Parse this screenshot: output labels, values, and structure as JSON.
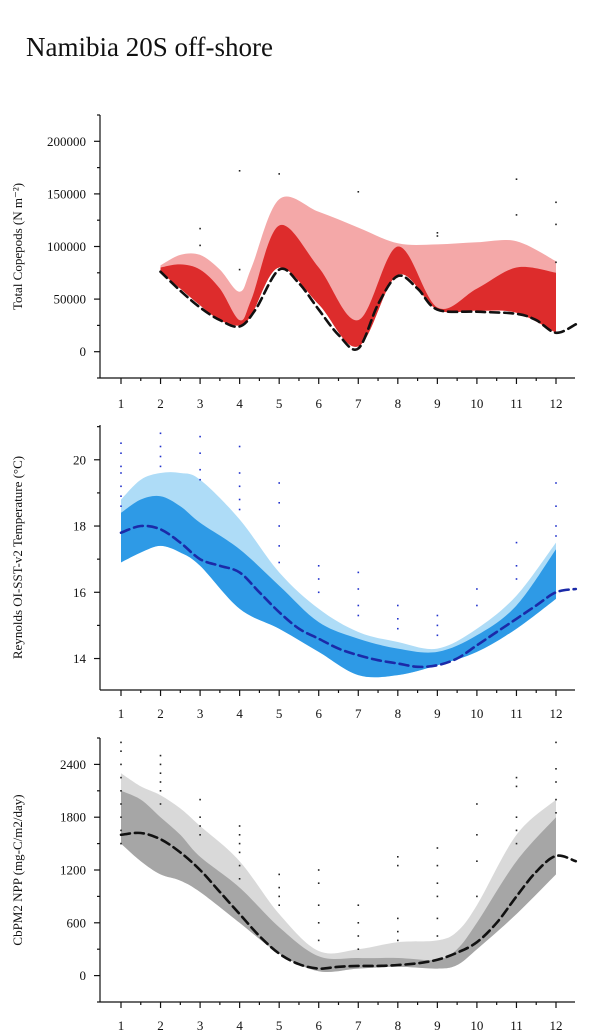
{
  "page": {
    "title": "Namibia 20S off-shore"
  },
  "chart_data": [
    {
      "type": "area",
      "ylabel": "Total Copepods (N m⁻²)",
      "ylim": [
        -25000,
        225000
      ],
      "yticks": [
        0,
        50000,
        100000,
        150000,
        200000
      ],
      "xticks": [
        1,
        2,
        3,
        4,
        5,
        6,
        7,
        8,
        9,
        10,
        11,
        12
      ],
      "xlim": [
        0.5,
        12.5
      ],
      "colors": {
        "outer": "#f4a8a8",
        "inner": "#dd2c2c",
        "median": "#111111",
        "points": "#222222"
      },
      "outer_band": {
        "x": [
          2,
          2.5,
          3,
          3.5,
          4,
          4.3,
          5,
          6,
          7,
          8,
          9,
          10,
          11,
          12
        ],
        "upper": [
          82000,
          92000,
          92000,
          78000,
          57000,
          80000,
          145000,
          133000,
          118000,
          103000,
          102000,
          104000,
          105000,
          86000
        ],
        "lower": [
          76000,
          60000,
          44000,
          30000,
          25000,
          35000,
          80000,
          45000,
          5000,
          73000,
          40000,
          39000,
          37000,
          18000
        ]
      },
      "inner_band": {
        "x": [
          2,
          2.5,
          3,
          3.5,
          4,
          4.3,
          5,
          6,
          7,
          8,
          9,
          10,
          11,
          12
        ],
        "upper": [
          80000,
          83000,
          78000,
          60000,
          30000,
          50000,
          120000,
          80000,
          30000,
          100000,
          42000,
          60000,
          80000,
          75000
        ],
        "lower": [
          76000,
          60000,
          44000,
          30000,
          25000,
          35000,
          80000,
          45000,
          5000,
          73000,
          40000,
          39000,
          37000,
          18000
        ]
      },
      "median": {
        "x": [
          2,
          2.5,
          3,
          3.5,
          4,
          4.4,
          5,
          5.5,
          6,
          6.5,
          7,
          7.5,
          8,
          8.5,
          9,
          10,
          11,
          11.5,
          12,
          12.5
        ],
        "y": [
          76000,
          58000,
          42000,
          30000,
          24000,
          40000,
          78000,
          65000,
          40000,
          16000,
          3000,
          45000,
          72000,
          60000,
          40000,
          38000,
          36000,
          30000,
          18000,
          26000
        ]
      },
      "points": [
        [
          3,
          117000
        ],
        [
          3,
          101000
        ],
        [
          4,
          172000
        ],
        [
          4,
          78000
        ],
        [
          5,
          169000
        ],
        [
          7,
          152000
        ],
        [
          9,
          113000
        ],
        [
          9,
          110000
        ],
        [
          11,
          164000
        ],
        [
          11,
          130000
        ],
        [
          12,
          142000
        ],
        [
          12,
          121000
        ],
        [
          12,
          85000
        ]
      ]
    },
    {
      "type": "area",
      "ylabel": "Reynolds OI-SST-v2 Temperature (°C)",
      "ylim": [
        13.05,
        21.05
      ],
      "yticks": [
        14,
        16,
        18,
        20
      ],
      "xticks": [
        1,
        2,
        3,
        4,
        5,
        6,
        7,
        8,
        9,
        10,
        11,
        12
      ],
      "xlim": [
        0.5,
        12.5
      ],
      "colors": {
        "outer": "#aedcf7",
        "inner": "#2e9ae6",
        "median": "#1b2aa8",
        "points": "#2233cc"
      },
      "outer_band": {
        "x": [
          1,
          1.5,
          2,
          2.5,
          3,
          4,
          5,
          6,
          7,
          8,
          9,
          10,
          11,
          12
        ],
        "upper": [
          18.8,
          19.4,
          19.6,
          19.6,
          19.4,
          18.2,
          16.6,
          15.5,
          14.8,
          14.5,
          14.3,
          14.9,
          15.9,
          17.5
        ],
        "lower": [
          16.9,
          17.2,
          17.4,
          17.2,
          16.8,
          15.5,
          14.9,
          14.2,
          13.5,
          13.5,
          13.8,
          14.2,
          14.9,
          15.8
        ]
      },
      "inner_band": {
        "x": [
          1,
          1.5,
          2,
          2.5,
          3,
          4,
          5,
          6,
          7,
          8,
          9,
          10,
          11,
          12
        ],
        "upper": [
          18.4,
          18.8,
          18.9,
          18.6,
          18.1,
          17.3,
          16.2,
          15.1,
          14.6,
          14.3,
          14.2,
          14.7,
          15.6,
          17.3
        ],
        "lower": [
          16.9,
          17.2,
          17.4,
          17.2,
          16.8,
          15.5,
          14.9,
          14.2,
          13.5,
          13.5,
          13.8,
          14.2,
          14.9,
          15.8
        ]
      },
      "median": {
        "x": [
          1,
          1.5,
          2,
          2.5,
          3,
          3.5,
          4,
          4.5,
          5,
          5.5,
          6,
          6.5,
          7,
          7.5,
          8,
          8.5,
          9,
          9.5,
          10,
          10.5,
          11,
          11.5,
          12,
          12.5
        ],
        "y": [
          17.8,
          18.0,
          17.9,
          17.5,
          17.0,
          16.8,
          16.6,
          16.0,
          15.4,
          14.9,
          14.6,
          14.3,
          14.1,
          13.95,
          13.85,
          13.75,
          13.8,
          14.0,
          14.4,
          14.8,
          15.2,
          15.6,
          16.0,
          16.1
        ]
      },
      "points": [
        [
          1,
          20.5
        ],
        [
          1,
          20.2
        ],
        [
          1,
          19.8
        ],
        [
          1,
          19.6
        ],
        [
          1,
          19.2
        ],
        [
          1,
          18.9
        ],
        [
          1,
          18.6
        ],
        [
          2,
          20.8
        ],
        [
          2,
          20.4
        ],
        [
          2,
          20.1
        ],
        [
          2,
          19.8
        ],
        [
          3,
          20.7
        ],
        [
          3,
          20.2
        ],
        [
          3,
          19.7
        ],
        [
          3,
          19.4
        ],
        [
          4,
          20.4
        ],
        [
          4,
          19.6
        ],
        [
          4,
          19.2
        ],
        [
          4,
          18.8
        ],
        [
          4,
          18.5
        ],
        [
          5,
          19.3
        ],
        [
          5,
          18.7
        ],
        [
          5,
          18.0
        ],
        [
          5,
          17.4
        ],
        [
          5,
          16.9
        ],
        [
          6,
          16.8
        ],
        [
          6,
          16.4
        ],
        [
          6,
          16.0
        ],
        [
          7,
          16.6
        ],
        [
          7,
          16.1
        ],
        [
          7,
          15.6
        ],
        [
          7,
          15.3
        ],
        [
          8,
          15.6
        ],
        [
          8,
          15.2
        ],
        [
          8,
          14.9
        ],
        [
          9,
          15.3
        ],
        [
          9,
          15.0
        ],
        [
          9,
          14.7
        ],
        [
          10,
          16.1
        ],
        [
          10,
          15.6
        ],
        [
          11,
          17.5
        ],
        [
          11,
          16.8
        ],
        [
          11,
          16.4
        ],
        [
          12,
          19.3
        ],
        [
          12,
          18.6
        ],
        [
          12,
          18.0
        ],
        [
          12,
          17.7
        ]
      ]
    },
    {
      "type": "area",
      "ylabel": "CbPM2 NPP (mg-C/m2/day)",
      "ylim": [
        -300,
        2700
      ],
      "yticks": [
        0,
        600,
        1200,
        1800,
        2400
      ],
      "xticks": [
        1,
        2,
        3,
        4,
        5,
        6,
        7,
        8,
        9,
        10,
        11,
        12
      ],
      "xlim": [
        0.5,
        12.5
      ],
      "colors": {
        "outer": "#d9d9d9",
        "inner": "#a6a6a6",
        "median": "#111111",
        "points": "#222222"
      },
      "outer_band": {
        "x": [
          1,
          1.5,
          2,
          2.5,
          3,
          4,
          5,
          6,
          7,
          8,
          9,
          9.5,
          10,
          11,
          12
        ],
        "upper": [
          2300,
          2150,
          2050,
          1900,
          1700,
          1300,
          700,
          280,
          300,
          380,
          400,
          500,
          800,
          1600,
          2000
        ],
        "lower": [
          1500,
          1300,
          1150,
          1080,
          950,
          600,
          250,
          50,
          80,
          100,
          80,
          120,
          300,
          700,
          1150
        ]
      },
      "inner_band": {
        "x": [
          1,
          1.5,
          2,
          2.5,
          3,
          4,
          5,
          6,
          7,
          8,
          9,
          9.5,
          10,
          11,
          12
        ],
        "upper": [
          2100,
          2000,
          1800,
          1600,
          1350,
          1000,
          550,
          220,
          200,
          200,
          180,
          300,
          600,
          1300,
          1800
        ],
        "lower": [
          1500,
          1300,
          1150,
          1080,
          950,
          600,
          250,
          50,
          80,
          100,
          80,
          120,
          300,
          700,
          1150
        ]
      },
      "median": {
        "x": [
          1,
          1.5,
          2,
          2.5,
          3,
          3.5,
          4,
          4.5,
          5,
          5.5,
          6,
          6.5,
          7,
          7.5,
          8,
          8.5,
          9,
          9.5,
          10,
          10.5,
          11,
          11.5,
          12,
          12.5
        ],
        "y": [
          1600,
          1620,
          1550,
          1400,
          1200,
          950,
          700,
          450,
          250,
          130,
          80,
          100,
          110,
          110,
          120,
          140,
          180,
          260,
          380,
          600,
          900,
          1180,
          1360,
          1300
        ]
      },
      "points": [
        [
          1,
          2650
        ],
        [
          1,
          2550
        ],
        [
          1,
          2400
        ],
        [
          1,
          2250
        ],
        [
          1,
          2100
        ],
        [
          1,
          1950
        ],
        [
          1,
          1800
        ],
        [
          1,
          1650
        ],
        [
          1,
          1500
        ],
        [
          2,
          2500
        ],
        [
          2,
          2400
        ],
        [
          2,
          2300
        ],
        [
          2,
          2200
        ],
        [
          2,
          2100
        ],
        [
          2,
          1950
        ],
        [
          3,
          2000
        ],
        [
          3,
          1800
        ],
        [
          3,
          1700
        ],
        [
          3,
          1600
        ],
        [
          4,
          1700
        ],
        [
          4,
          1600
        ],
        [
          4,
          1500
        ],
        [
          4,
          1400
        ],
        [
          4,
          1250
        ],
        [
          4,
          1100
        ],
        [
          5,
          1150
        ],
        [
          5,
          1000
        ],
        [
          5,
          900
        ],
        [
          5,
          800
        ],
        [
          6,
          1200
        ],
        [
          6,
          1050
        ],
        [
          6,
          800
        ],
        [
          6,
          600
        ],
        [
          6,
          400
        ],
        [
          7,
          800
        ],
        [
          7,
          600
        ],
        [
          7,
          450
        ],
        [
          7,
          300
        ],
        [
          8,
          1350
        ],
        [
          8,
          1250
        ],
        [
          8,
          650
        ],
        [
          8,
          500
        ],
        [
          8,
          400
        ],
        [
          9,
          1450
        ],
        [
          9,
          1250
        ],
        [
          9,
          1050
        ],
        [
          9,
          900
        ],
        [
          9,
          650
        ],
        [
          9,
          450
        ],
        [
          10,
          1950
        ],
        [
          10,
          1600
        ],
        [
          10,
          1300
        ],
        [
          10,
          900
        ],
        [
          11,
          2250
        ],
        [
          11,
          2150
        ],
        [
          11,
          1800
        ],
        [
          11,
          1650
        ],
        [
          11,
          1500
        ],
        [
          12,
          2650
        ],
        [
          12,
          2350
        ],
        [
          12,
          2200
        ],
        [
          12,
          2000
        ],
        [
          12,
          1850
        ]
      ]
    }
  ]
}
